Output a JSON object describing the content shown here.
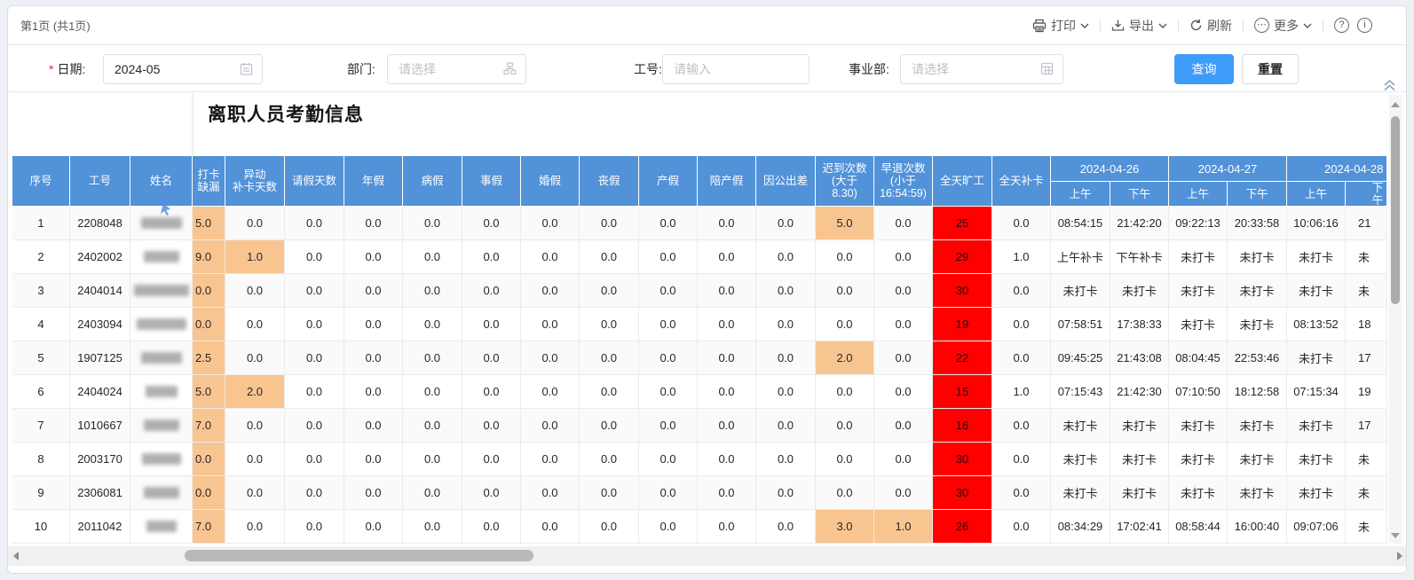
{
  "page": {
    "indicator": "第1页 (共1页)"
  },
  "toolbar": {
    "print": "打印",
    "export": "导出",
    "refresh": "刷新",
    "more": "更多",
    "help": "?",
    "info": "i"
  },
  "filters": {
    "date": {
      "label": "日期:",
      "required": true,
      "value": "2024-05"
    },
    "dept": {
      "label": "部门:",
      "placeholder": "请选择"
    },
    "emp": {
      "label": "工号:",
      "placeholder": "请输入"
    },
    "bu": {
      "label": "事业部:",
      "placeholder": "请选择"
    },
    "search": "查询",
    "reset": "重置"
  },
  "report": {
    "title": "离职人员考勤信息",
    "columns": [
      "序号",
      "工号",
      "姓名",
      "打卡缺漏",
      "异动\n补卡天数",
      "请假天数",
      "年假",
      "病假",
      "事假",
      "婚假",
      "丧假",
      "产假",
      "陪产假",
      "因公出差",
      "迟到次数\n(大于\n8.30)",
      "早退次数\n(小于\n16:54:59)",
      "全天旷工",
      "全天补卡"
    ],
    "date_groups": [
      {
        "label": "2024-04-26",
        "subs": [
          "上午",
          "下午"
        ]
      },
      {
        "label": "2024-04-27",
        "subs": [
          "上午",
          "下午"
        ]
      },
      {
        "label": "2024-04-28",
        "subs": [
          "上午",
          "下午"
        ]
      }
    ],
    "rows": [
      [
        "1",
        "2208048",
        "",
        "5.0",
        "0.0",
        "0.0",
        "0.0",
        "0.0",
        "0.0",
        "0.0",
        "0.0",
        "0.0",
        "0.0",
        "0.0",
        "5.0",
        "0.0",
        "25",
        "0.0",
        "08:54:15",
        "21:42:20",
        "09:22:13",
        "20:33:58",
        "10:06:16",
        "21"
      ],
      [
        "2",
        "2402002",
        "",
        "9.0",
        "1.0",
        "0.0",
        "0.0",
        "0.0",
        "0.0",
        "0.0",
        "0.0",
        "0.0",
        "0.0",
        "0.0",
        "0.0",
        "0.0",
        "29",
        "1.0",
        "上午补卡",
        "下午补卡",
        "未打卡",
        "未打卡",
        "未打卡",
        "未"
      ],
      [
        "3",
        "2404014",
        "",
        "0.0",
        "0.0",
        "0.0",
        "0.0",
        "0.0",
        "0.0",
        "0.0",
        "0.0",
        "0.0",
        "0.0",
        "0.0",
        "0.0",
        "0.0",
        "30",
        "0.0",
        "未打卡",
        "未打卡",
        "未打卡",
        "未打卡",
        "未打卡",
        "未"
      ],
      [
        "4",
        "2403094",
        "",
        "0.0",
        "0.0",
        "0.0",
        "0.0",
        "0.0",
        "0.0",
        "0.0",
        "0.0",
        "0.0",
        "0.0",
        "0.0",
        "0.0",
        "0.0",
        "19",
        "0.0",
        "07:58:51",
        "17:38:33",
        "未打卡",
        "未打卡",
        "08:13:52",
        "18"
      ],
      [
        "5",
        "1907125",
        "",
        "2.5",
        "0.0",
        "0.0",
        "0.0",
        "0.0",
        "0.0",
        "0.0",
        "0.0",
        "0.0",
        "0.0",
        "0.0",
        "2.0",
        "0.0",
        "22",
        "0.0",
        "09:45:25",
        "21:43:08",
        "08:04:45",
        "22:53:46",
        "未打卡",
        "17"
      ],
      [
        "6",
        "2404024",
        "",
        "5.0",
        "2.0",
        "0.0",
        "0.0",
        "0.0",
        "0.0",
        "0.0",
        "0.0",
        "0.0",
        "0.0",
        "0.0",
        "0.0",
        "0.0",
        "15",
        "1.0",
        "07:15:43",
        "21:42:30",
        "07:10:50",
        "18:12:58",
        "07:15:34",
        "19"
      ],
      [
        "7",
        "1010667",
        "",
        "7.0",
        "0.0",
        "0.0",
        "0.0",
        "0.0",
        "0.0",
        "0.0",
        "0.0",
        "0.0",
        "0.0",
        "0.0",
        "0.0",
        "0.0",
        "16",
        "0.0",
        "未打卡",
        "未打卡",
        "未打卡",
        "未打卡",
        "未打卡",
        "17"
      ],
      [
        "8",
        "2003170",
        "",
        "0.0",
        "0.0",
        "0.0",
        "0.0",
        "0.0",
        "0.0",
        "0.0",
        "0.0",
        "0.0",
        "0.0",
        "0.0",
        "0.0",
        "0.0",
        "30",
        "0.0",
        "未打卡",
        "未打卡",
        "未打卡",
        "未打卡",
        "未打卡",
        "未"
      ],
      [
        "9",
        "2306081",
        "",
        "0.0",
        "0.0",
        "0.0",
        "0.0",
        "0.0",
        "0.0",
        "0.0",
        "0.0",
        "0.0",
        "0.0",
        "0.0",
        "0.0",
        "0.0",
        "30",
        "0.0",
        "未打卡",
        "未打卡",
        "未打卡",
        "未打卡",
        "未打卡",
        "未"
      ],
      [
        "10",
        "2011042",
        "",
        "7.0",
        "0.0",
        "0.0",
        "0.0",
        "0.0",
        "0.0",
        "0.0",
        "0.0",
        "0.0",
        "0.0",
        "0.0",
        "3.0",
        "1.0",
        "26",
        "0.0",
        "08:34:29",
        "17:02:41",
        "08:58:44",
        "16:00:40",
        "09:07:06",
        "未"
      ]
    ]
  },
  "colors": {
    "header_blue": "#5292d8",
    "highlight_orange": "#f8c591",
    "alert_red": "#fe0000",
    "primary_button": "#3f9bfa"
  }
}
